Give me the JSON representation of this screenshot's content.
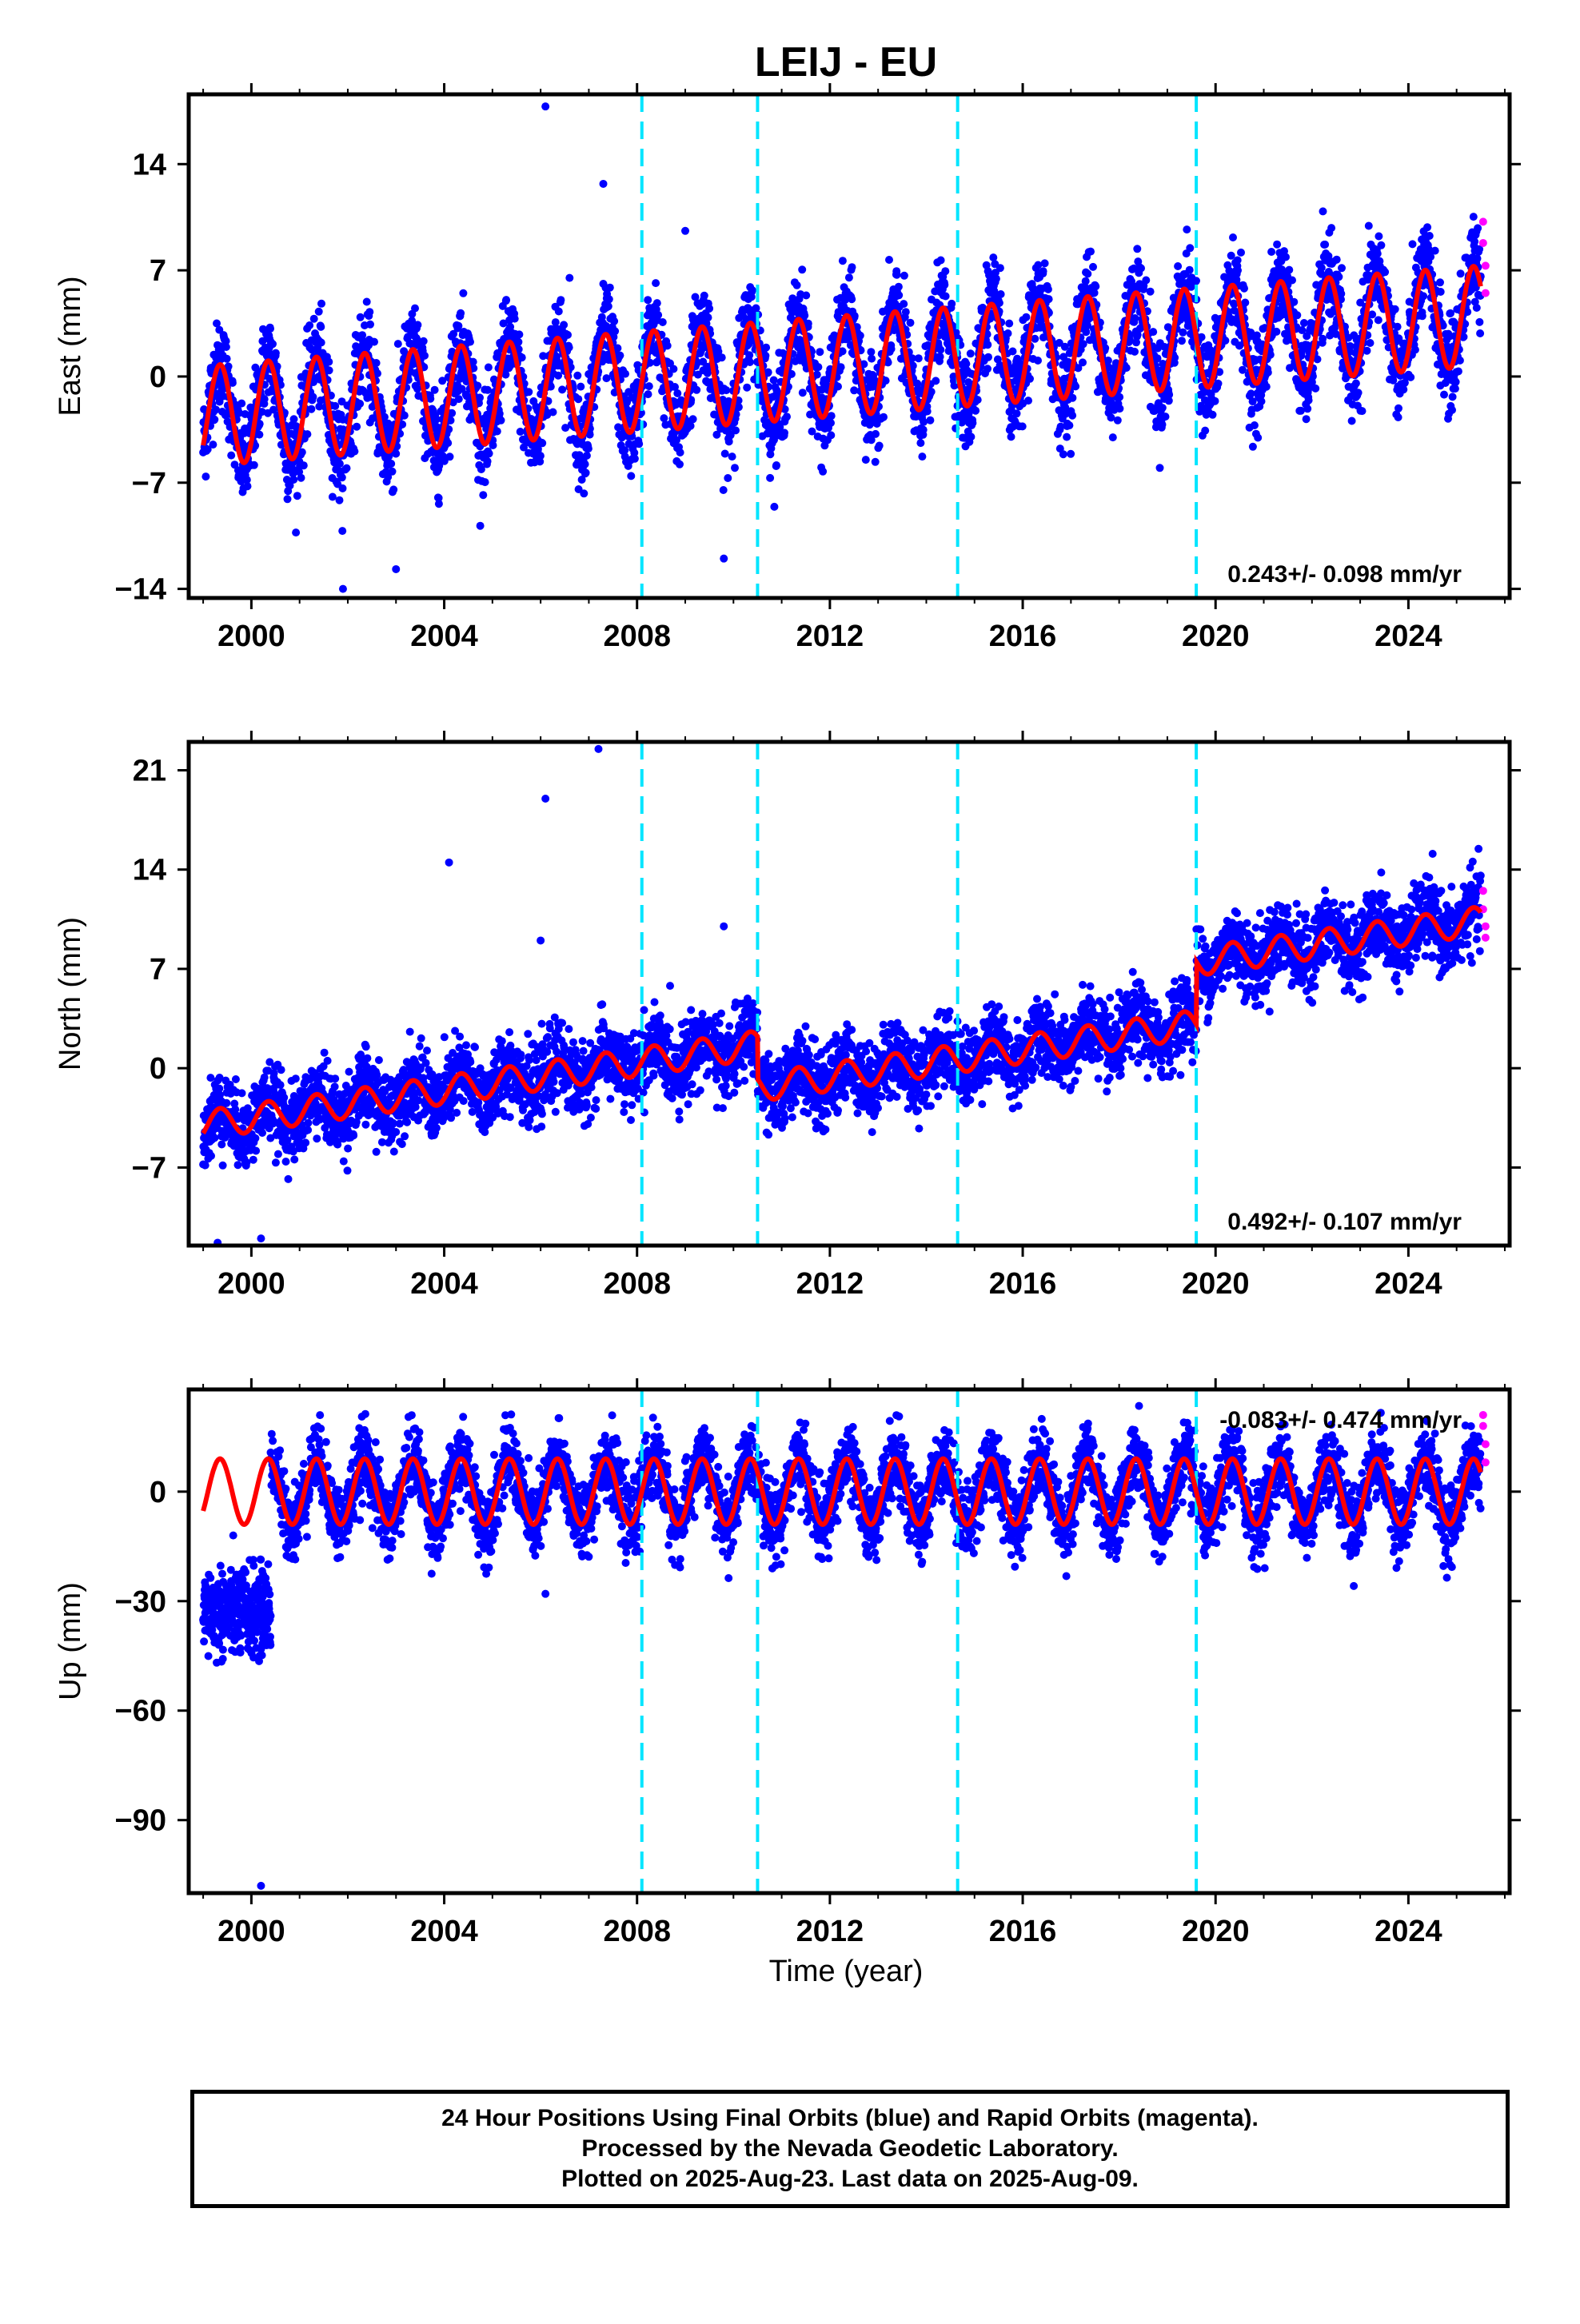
{
  "title": "LEIJ - EU",
  "xlabel": "Time (year)",
  "footer": {
    "line1": "24 Hour Positions Using Final Orbits (blue) and Rapid Orbits (magenta).",
    "line2": "Processed by the Nevada Geodetic Laboratory.",
    "line3": "Plotted on 2025-Aug-23. Last data on 2025-Aug-09."
  },
  "colors": {
    "final": "#0000ff",
    "rapid": "#ff00ff",
    "model": "#ff0000",
    "offsets": "#00e5ff"
  },
  "chart_data": [
    {
      "type": "scatter",
      "component": "east",
      "ylabel": "East (mm)",
      "rate_text": "0.243+/- 0.098 mm/yr",
      "rate_position": "bottom-right",
      "xlim": [
        1998.7,
        2026.1
      ],
      "ylim": [
        -14.6,
        18.6
      ],
      "xticks": [
        2000,
        2004,
        2008,
        2012,
        2016,
        2020,
        2024
      ],
      "yticks": [
        -14,
        -7,
        0,
        7,
        14
      ],
      "offset_years": [
        2008.1,
        2010.5,
        2014.65,
        2019.6
      ],
      "model": {
        "start": [
          1999.0,
          -2.6
        ],
        "end": [
          2025.5,
          4.0
        ],
        "annual_amplitude": 3.3,
        "steps": []
      },
      "scatter_sigma": 1.5,
      "data_start": 1999.0,
      "data_end": 2025.5,
      "outliers": [
        [
          2006.1,
          17.8
        ],
        [
          2007.3,
          12.7
        ],
        [
          2009.0,
          9.6
        ],
        [
          2006.6,
          6.5
        ],
        [
          2001.9,
          -14.0
        ],
        [
          2003.0,
          -12.7
        ],
        [
          2009.8,
          -12.0
        ]
      ],
      "rapid_points": [
        [
          2025.55,
          10.2
        ],
        [
          2025.55,
          8.8
        ],
        [
          2025.6,
          7.3
        ],
        [
          2025.6,
          5.5
        ]
      ]
    },
    {
      "type": "scatter",
      "component": "north",
      "ylabel": "North (mm)",
      "rate_text": "0.492+/- 0.107 mm/yr",
      "rate_position": "bottom-right",
      "xlim": [
        1998.7,
        2026.1
      ],
      "ylim": [
        -12.5,
        23.0
      ],
      "xticks": [
        2000,
        2004,
        2008,
        2012,
        2016,
        2020,
        2024
      ],
      "yticks": [
        -7,
        0,
        7,
        14,
        21
      ],
      "offset_years": [
        2008.1,
        2010.5,
        2014.65,
        2019.6
      ],
      "model": {
        "start": [
          1999.0,
          -4.0
        ],
        "end": [
          2025.5,
          9.0
        ],
        "annual_amplitude": 1.0,
        "steps": [
          [
            2010.5,
            -3.0
          ],
          [
            2019.6,
            4.4
          ]
        ]
      },
      "scatter_sigma": 1.3,
      "data_start": 1999.0,
      "data_end": 2025.5,
      "outliers": [
        [
          2007.2,
          22.5
        ],
        [
          2006.1,
          19.0
        ],
        [
          2004.1,
          14.5
        ],
        [
          2006.0,
          9.0
        ],
        [
          2009.8,
          10.0
        ],
        [
          2000.2,
          -12.0
        ],
        [
          1999.3,
          -12.3
        ]
      ],
      "rapid_points": [
        [
          2025.55,
          12.5
        ],
        [
          2025.55,
          11.2
        ],
        [
          2025.6,
          10.0
        ],
        [
          2025.6,
          9.2
        ]
      ]
    },
    {
      "type": "scatter",
      "component": "up",
      "ylabel": "Up (mm)",
      "rate_text": "-0.083+/- 0.474 mm/yr",
      "rate_position": "top-right",
      "xlim": [
        1998.7,
        2026.1
      ],
      "ylim": [
        -110.0,
        28.0
      ],
      "xticks": [
        2000,
        2004,
        2008,
        2012,
        2016,
        2020,
        2024
      ],
      "yticks": [
        -90,
        -60,
        -30,
        0
      ],
      "offset_years": [
        2008.1,
        2010.5,
        2014.65,
        2019.6
      ],
      "model": {
        "start": [
          1999.0,
          0.0
        ],
        "end": [
          2025.5,
          0.0
        ],
        "annual_amplitude": 9.0,
        "steps": []
      },
      "scatter_sigma": 5.0,
      "data_start": 2000.4,
      "data_end": 2025.5,
      "early_cluster": {
        "start": 1999.0,
        "end": 2000.4,
        "center": -33.0,
        "spread": 6.0,
        "max": -12.0,
        "min": -55.0
      },
      "outliers": [
        [
          2000.2,
          -108.0
        ],
        [
          2006.1,
          -28.0
        ]
      ],
      "rapid_points": [
        [
          2025.55,
          21.0
        ],
        [
          2025.55,
          18.0
        ],
        [
          2025.6,
          13.0
        ],
        [
          2025.6,
          8.0
        ]
      ]
    }
  ]
}
